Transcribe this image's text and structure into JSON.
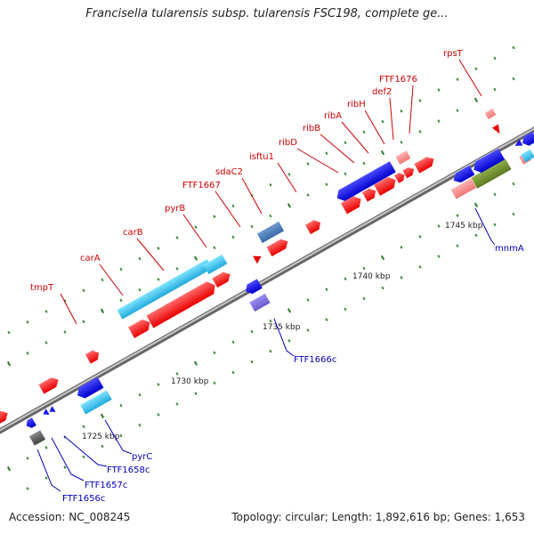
{
  "title": "Francisella tularensis subsp. tularensis FSC198, complete ge...",
  "footer": {
    "accession": "Accession: NC_008245",
    "summary": "Topology: circular; Length: 1,892,616 bp; Genes: 1,653"
  },
  "scale_labels": [
    "1725 kbp",
    "1730 kbp",
    "1735 kbp",
    "1740 kbp",
    "1745 kbp"
  ],
  "genes_forward": [
    "tmpT",
    "carA",
    "carB",
    "pyrB",
    "FTF1667",
    "sdaC2",
    "isftu1",
    "ribD",
    "ribB",
    "ribA",
    "ribH",
    "def2",
    "FTF1676",
    "rpsT"
  ],
  "genes_reverse": [
    "FTF1656c",
    "FTF1657c",
    "FTF1658c",
    "pyrC",
    "FTF1666c",
    "mnmA"
  ],
  "colors": {
    "forward_label": "#cc0000",
    "reverse_label": "#0000bb",
    "backbone": "#9a9a9a",
    "tick": "#2a7a2a"
  }
}
